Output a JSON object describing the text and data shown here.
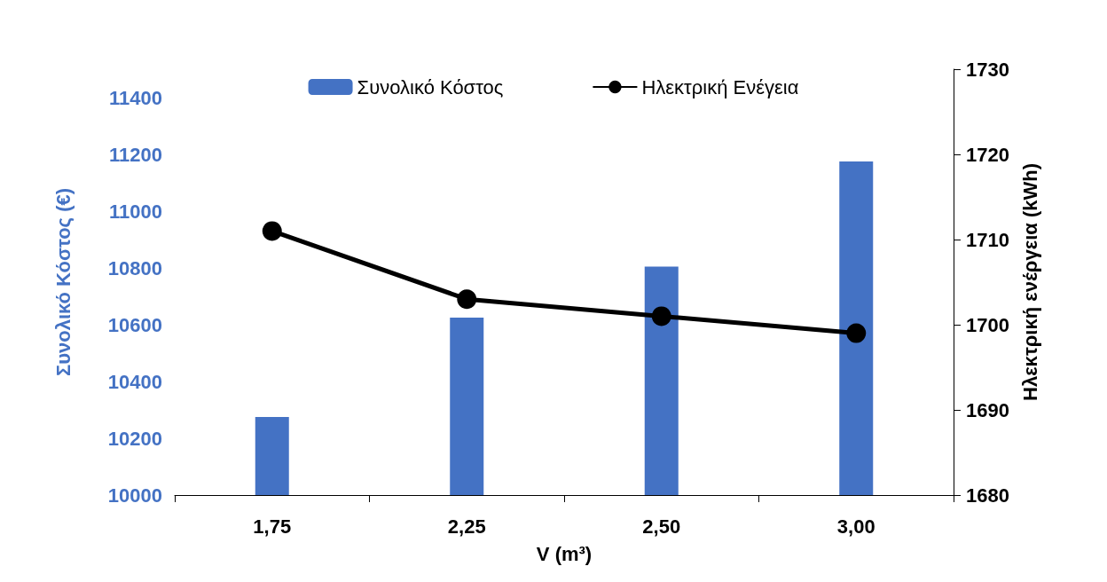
{
  "chart_data": {
    "type": "bar",
    "categories": [
      "1,75",
      "2,25",
      "2,50",
      "3,00"
    ],
    "xlabel": "V (m³)",
    "ylabel": "Συνολικό Κόστος (€)",
    "y2label": "Ηλεκτρική ενέργεια (kWh)",
    "series": [
      {
        "name": "Συνολικό Κόστος",
        "color": "#4472c4",
        "values": [
          10275,
          10625,
          10805,
          11175
        ]
      },
      {
        "name": "Ηλεκτρική Ενέγεια",
        "type": "line",
        "axis": "y2",
        "color": "#000000",
        "marker": "circle",
        "values": [
          1711,
          1703,
          1701,
          1699
        ]
      }
    ],
    "ylim": [
      10000,
      11500
    ],
    "yticks": [
      10000,
      10200,
      10400,
      10600,
      10800,
      11000,
      11200,
      11400
    ],
    "y2lim": [
      1680,
      1730
    ],
    "y2ticks": [
      1680,
      1690,
      1700,
      1710,
      1720,
      1730
    ],
    "grid": false,
    "legend": "top"
  }
}
